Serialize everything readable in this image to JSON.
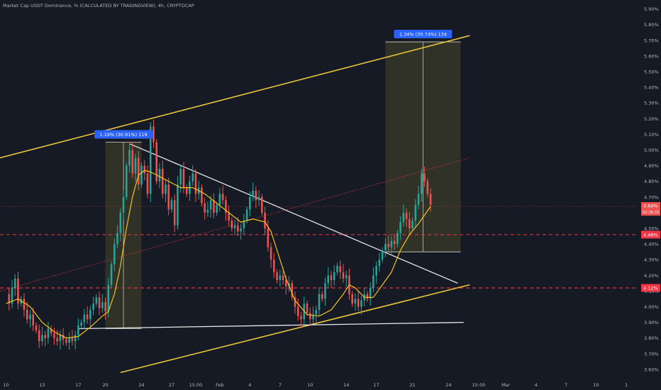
{
  "header": {
    "title": "Market Cap USDT Dominance, % (CALCULATED BY TRADINGVIEW), 4h, CRYPTOCAP"
  },
  "colors": {
    "background": "#161a25",
    "up": "#26a69a",
    "down": "#ef5350",
    "channel": "#e8c53a",
    "moving_average": "#f0c419",
    "trendline": "#e6e6e6",
    "level": "#f23645",
    "measure_box": "#3a3b2a",
    "measure_label": "#2962ff"
  },
  "chart_data": {
    "type": "candlestick",
    "title": "Market Cap USDT Dominance, % (CALCULATED BY TRADINGVIEW), 4h, CRYPTOCAP",
    "xlabel": "",
    "ylabel": "",
    "ylim": [
      3.55,
      5.93
    ],
    "y_ticks": [
      "3.60%",
      "3.70%",
      "3.80%",
      "3.90%",
      "4.00%",
      "4.10%",
      "4.20%",
      "4.30%",
      "4.40%",
      "4.50%",
      "4.60%",
      "4.70%",
      "4.80%",
      "4.90%",
      "5.00%",
      "5.10%",
      "5.20%",
      "5.30%",
      "5.40%",
      "5.50%",
      "5.60%",
      "5.70%",
      "5.80%",
      "5.90%"
    ],
    "y_tick_values": [
      3.6,
      3.7,
      3.8,
      3.9,
      4.0,
      4.1,
      4.2,
      4.3,
      4.4,
      4.5,
      4.6,
      4.7,
      4.8,
      4.9,
      5.0,
      5.1,
      5.2,
      5.3,
      5.4,
      5.5,
      5.6,
      5.7,
      5.8,
      5.9
    ],
    "x_ticks": [
      "10",
      "13",
      "17",
      "20",
      "24",
      "27",
      "15:00",
      "Feb",
      "4",
      "7",
      "10",
      "14",
      "17",
      "21",
      "24",
      "15:00",
      "Mar",
      "4",
      "7",
      "10",
      "1"
    ],
    "x_tick_values": [
      0,
      12,
      24,
      33,
      45,
      55,
      63,
      71,
      81,
      91,
      101,
      113,
      123,
      135,
      147,
      157,
      166,
      176,
      186,
      196,
      206
    ],
    "x_range": [
      -2,
      210
    ],
    "price_path": [
      [
        0,
        4.08
      ],
      [
        1,
        4.02
      ],
      [
        2,
        4.12
      ],
      [
        3,
        4.18
      ],
      [
        4,
        4.02
      ],
      [
        5,
        4.05
      ],
      [
        6,
        3.98
      ],
      [
        7,
        3.92
      ],
      [
        8,
        3.95
      ],
      [
        9,
        3.88
      ],
      [
        10,
        3.85
      ],
      [
        11,
        3.78
      ],
      [
        12,
        3.82
      ],
      [
        13,
        3.8
      ],
      [
        14,
        3.86
      ],
      [
        15,
        3.83
      ],
      [
        16,
        3.8
      ],
      [
        17,
        3.78
      ],
      [
        18,
        3.82
      ],
      [
        19,
        3.79
      ],
      [
        20,
        3.77
      ],
      [
        21,
        3.8
      ],
      [
        22,
        3.78
      ],
      [
        23,
        3.82
      ],
      [
        24,
        3.88
      ],
      [
        25,
        3.9
      ],
      [
        26,
        3.95
      ],
      [
        27,
        3.92
      ],
      [
        28,
        3.98
      ],
      [
        29,
        4.02
      ],
      [
        30,
        4.06
      ],
      [
        31,
        3.99
      ],
      [
        32,
        4.03
      ],
      [
        33,
        3.97
      ],
      [
        34,
        4.14
      ],
      [
        35,
        4.27
      ],
      [
        36,
        4.4
      ],
      [
        37,
        4.47
      ],
      [
        38,
        4.6
      ],
      [
        39,
        4.7
      ],
      [
        40,
        4.9
      ],
      [
        41,
        5.0
      ],
      [
        42,
        4.85
      ],
      [
        43,
        4.95
      ],
      [
        44,
        4.78
      ],
      [
        45,
        4.9
      ],
      [
        46,
        4.85
      ],
      [
        47,
        4.72
      ],
      [
        48,
        5.15
      ],
      [
        49,
        5.05
      ],
      [
        50,
        4.8
      ],
      [
        51,
        4.88
      ],
      [
        52,
        4.72
      ],
      [
        53,
        4.78
      ],
      [
        54,
        4.62
      ],
      [
        55,
        4.68
      ],
      [
        56,
        4.52
      ],
      [
        57,
        4.78
      ],
      [
        58,
        4.88
      ],
      [
        59,
        4.76
      ],
      [
        60,
        4.72
      ],
      [
        61,
        4.8
      ],
      [
        62,
        4.85
      ],
      [
        63,
        4.72
      ],
      [
        64,
        4.76
      ],
      [
        65,
        4.66
      ],
      [
        66,
        4.6
      ],
      [
        67,
        4.62
      ],
      [
        68,
        4.68
      ],
      [
        69,
        4.6
      ],
      [
        70,
        4.65
      ],
      [
        71,
        4.72
      ],
      [
        72,
        4.68
      ],
      [
        73,
        4.6
      ],
      [
        74,
        4.55
      ],
      [
        75,
        4.5
      ],
      [
        76,
        4.52
      ],
      [
        77,
        4.48
      ],
      [
        78,
        4.5
      ],
      [
        79,
        4.55
      ],
      [
        80,
        4.62
      ],
      [
        81,
        4.7
      ],
      [
        82,
        4.74
      ],
      [
        83,
        4.68
      ],
      [
        84,
        4.7
      ],
      [
        85,
        4.6
      ],
      [
        86,
        4.5
      ],
      [
        87,
        4.38
      ],
      [
        88,
        4.3
      ],
      [
        89,
        4.22
      ],
      [
        90,
        4.17
      ],
      [
        91,
        4.2
      ],
      [
        92,
        4.17
      ],
      [
        93,
        4.13
      ],
      [
        94,
        4.15
      ],
      [
        95,
        4.06
      ],
      [
        96,
        4.0
      ],
      [
        97,
        3.94
      ],
      [
        98,
        3.92
      ],
      [
        99,
        4.02
      ],
      [
        100,
        3.96
      ],
      [
        101,
        3.92
      ],
      [
        102,
        3.95
      ],
      [
        103,
        3.98
      ],
      [
        104,
        4.08
      ],
      [
        105,
        4.05
      ],
      [
        106,
        4.15
      ],
      [
        107,
        4.2
      ],
      [
        108,
        4.17
      ],
      [
        109,
        4.22
      ],
      [
        110,
        4.26
      ],
      [
        111,
        4.22
      ],
      [
        112,
        4.18
      ],
      [
        113,
        4.2
      ],
      [
        114,
        4.08
      ],
      [
        115,
        4.02
      ],
      [
        116,
        4.05
      ],
      [
        117,
        4.0
      ],
      [
        118,
        4.04
      ],
      [
        119,
        4.08
      ],
      [
        120,
        4.05
      ],
      [
        121,
        4.12
      ],
      [
        122,
        4.2
      ],
      [
        123,
        4.26
      ],
      [
        124,
        4.3
      ],
      [
        125,
        4.36
      ],
      [
        126,
        4.4
      ],
      [
        127,
        4.38
      ],
      [
        128,
        4.42
      ],
      [
        129,
        4.4
      ],
      [
        130,
        4.47
      ],
      [
        131,
        4.54
      ],
      [
        132,
        4.6
      ],
      [
        133,
        4.56
      ],
      [
        134,
        4.5
      ],
      [
        135,
        4.55
      ],
      [
        136,
        4.65
      ],
      [
        137,
        4.72
      ],
      [
        138,
        4.85
      ],
      [
        139,
        4.8
      ],
      [
        140,
        4.72
      ],
      [
        141,
        4.65
      ]
    ],
    "moving_average": [
      [
        0,
        4.02
      ],
      [
        4,
        4.05
      ],
      [
        8,
        4.0
      ],
      [
        12,
        3.9
      ],
      [
        16,
        3.84
      ],
      [
        20,
        3.8
      ],
      [
        24,
        3.81
      ],
      [
        28,
        3.87
      ],
      [
        32,
        3.94
      ],
      [
        34,
        3.97
      ],
      [
        36,
        4.08
      ],
      [
        38,
        4.26
      ],
      [
        40,
        4.5
      ],
      [
        42,
        4.7
      ],
      [
        44,
        4.84
      ],
      [
        46,
        4.87
      ],
      [
        48,
        4.86
      ],
      [
        50,
        4.84
      ],
      [
        54,
        4.8
      ],
      [
        58,
        4.76
      ],
      [
        62,
        4.76
      ],
      [
        66,
        4.72
      ],
      [
        70,
        4.66
      ],
      [
        74,
        4.6
      ],
      [
        78,
        4.54
      ],
      [
        82,
        4.56
      ],
      [
        86,
        4.54
      ],
      [
        88,
        4.48
      ],
      [
        90,
        4.36
      ],
      [
        93,
        4.18
      ],
      [
        96,
        4.04
      ],
      [
        100,
        3.95
      ],
      [
        104,
        3.94
      ],
      [
        108,
        3.98
      ],
      [
        112,
        4.08
      ],
      [
        114,
        4.14
      ],
      [
        116,
        4.12
      ],
      [
        119,
        4.06
      ],
      [
        122,
        4.06
      ],
      [
        125,
        4.14
      ],
      [
        128,
        4.22
      ],
      [
        131,
        4.36
      ],
      [
        134,
        4.46
      ],
      [
        137,
        4.53
      ],
      [
        141,
        4.64
      ]
    ],
    "channel_upper": [
      [
        -2,
        4.95
      ],
      [
        154,
        5.73
      ]
    ],
    "channel_lower": [
      [
        38,
        3.58
      ],
      [
        154,
        4.14
      ]
    ],
    "channel_mid": [
      [
        -2,
        4.1
      ],
      [
        154,
        4.95
      ]
    ],
    "descending_trendline": [
      [
        41,
        5.04
      ],
      [
        150,
        4.15
      ]
    ],
    "support_line": [
      [
        24,
        3.86
      ],
      [
        152,
        3.9
      ]
    ],
    "horizontal_levels": [
      {
        "value": 4.46,
        "label": "4.46%"
      },
      {
        "value": 4.12,
        "label": "4.12%"
      }
    ],
    "measurements": [
      {
        "x": [
          33,
          45
        ],
        "y": [
          3.86,
          5.05
        ],
        "label": "1.19% (30.91%) 119"
      },
      {
        "x": [
          126,
          151
        ],
        "y": [
          4.35,
          5.69
        ],
        "label": "1.34% (30.74%) 134"
      }
    ],
    "current_price": {
      "value": 4.64,
      "label": "4.64%",
      "countdown": "02:26:33"
    }
  }
}
